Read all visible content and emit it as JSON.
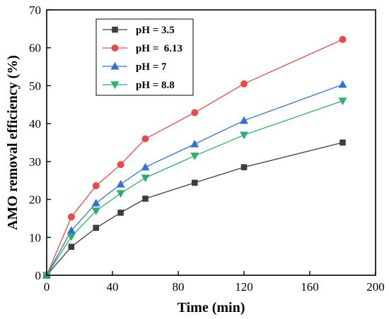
{
  "chart_data": {
    "type": "line",
    "xlabel": "Time (min)",
    "ylabel": "AMO removal efficiency (%)",
    "xlim": [
      0,
      200
    ],
    "ylim": [
      0,
      70
    ],
    "xticks": [
      0,
      40,
      80,
      120,
      160,
      200
    ],
    "yticks": [
      0,
      10,
      20,
      30,
      40,
      50,
      60,
      70
    ],
    "grid": false,
    "legend_position": "top-left",
    "x": [
      0,
      15,
      30,
      45,
      60,
      90,
      120,
      180
    ],
    "series": [
      {
        "name": "pH = 3.5",
        "color": "#3d3d3d",
        "marker": "square",
        "values": [
          0,
          7.5,
          12.5,
          16.5,
          20.2,
          24.4,
          28.5,
          35.0
        ]
      },
      {
        "name": "pH =  6.13",
        "color": "#e84a4a",
        "marker": "circle",
        "values": [
          0,
          15.4,
          23.6,
          29.2,
          36.0,
          42.9,
          50.5,
          62.2
        ]
      },
      {
        "name": "pH = 7",
        "color": "#2f72d6",
        "marker": "triangle-up",
        "values": [
          0,
          11.8,
          19.0,
          24.0,
          28.5,
          34.6,
          40.8,
          50.3
        ]
      },
      {
        "name": "pH = 8.8",
        "color": "#2fae68",
        "marker": "triangle-down",
        "values": [
          0,
          10.2,
          17.0,
          21.6,
          25.7,
          31.5,
          37.0,
          46.0
        ]
      }
    ]
  }
}
